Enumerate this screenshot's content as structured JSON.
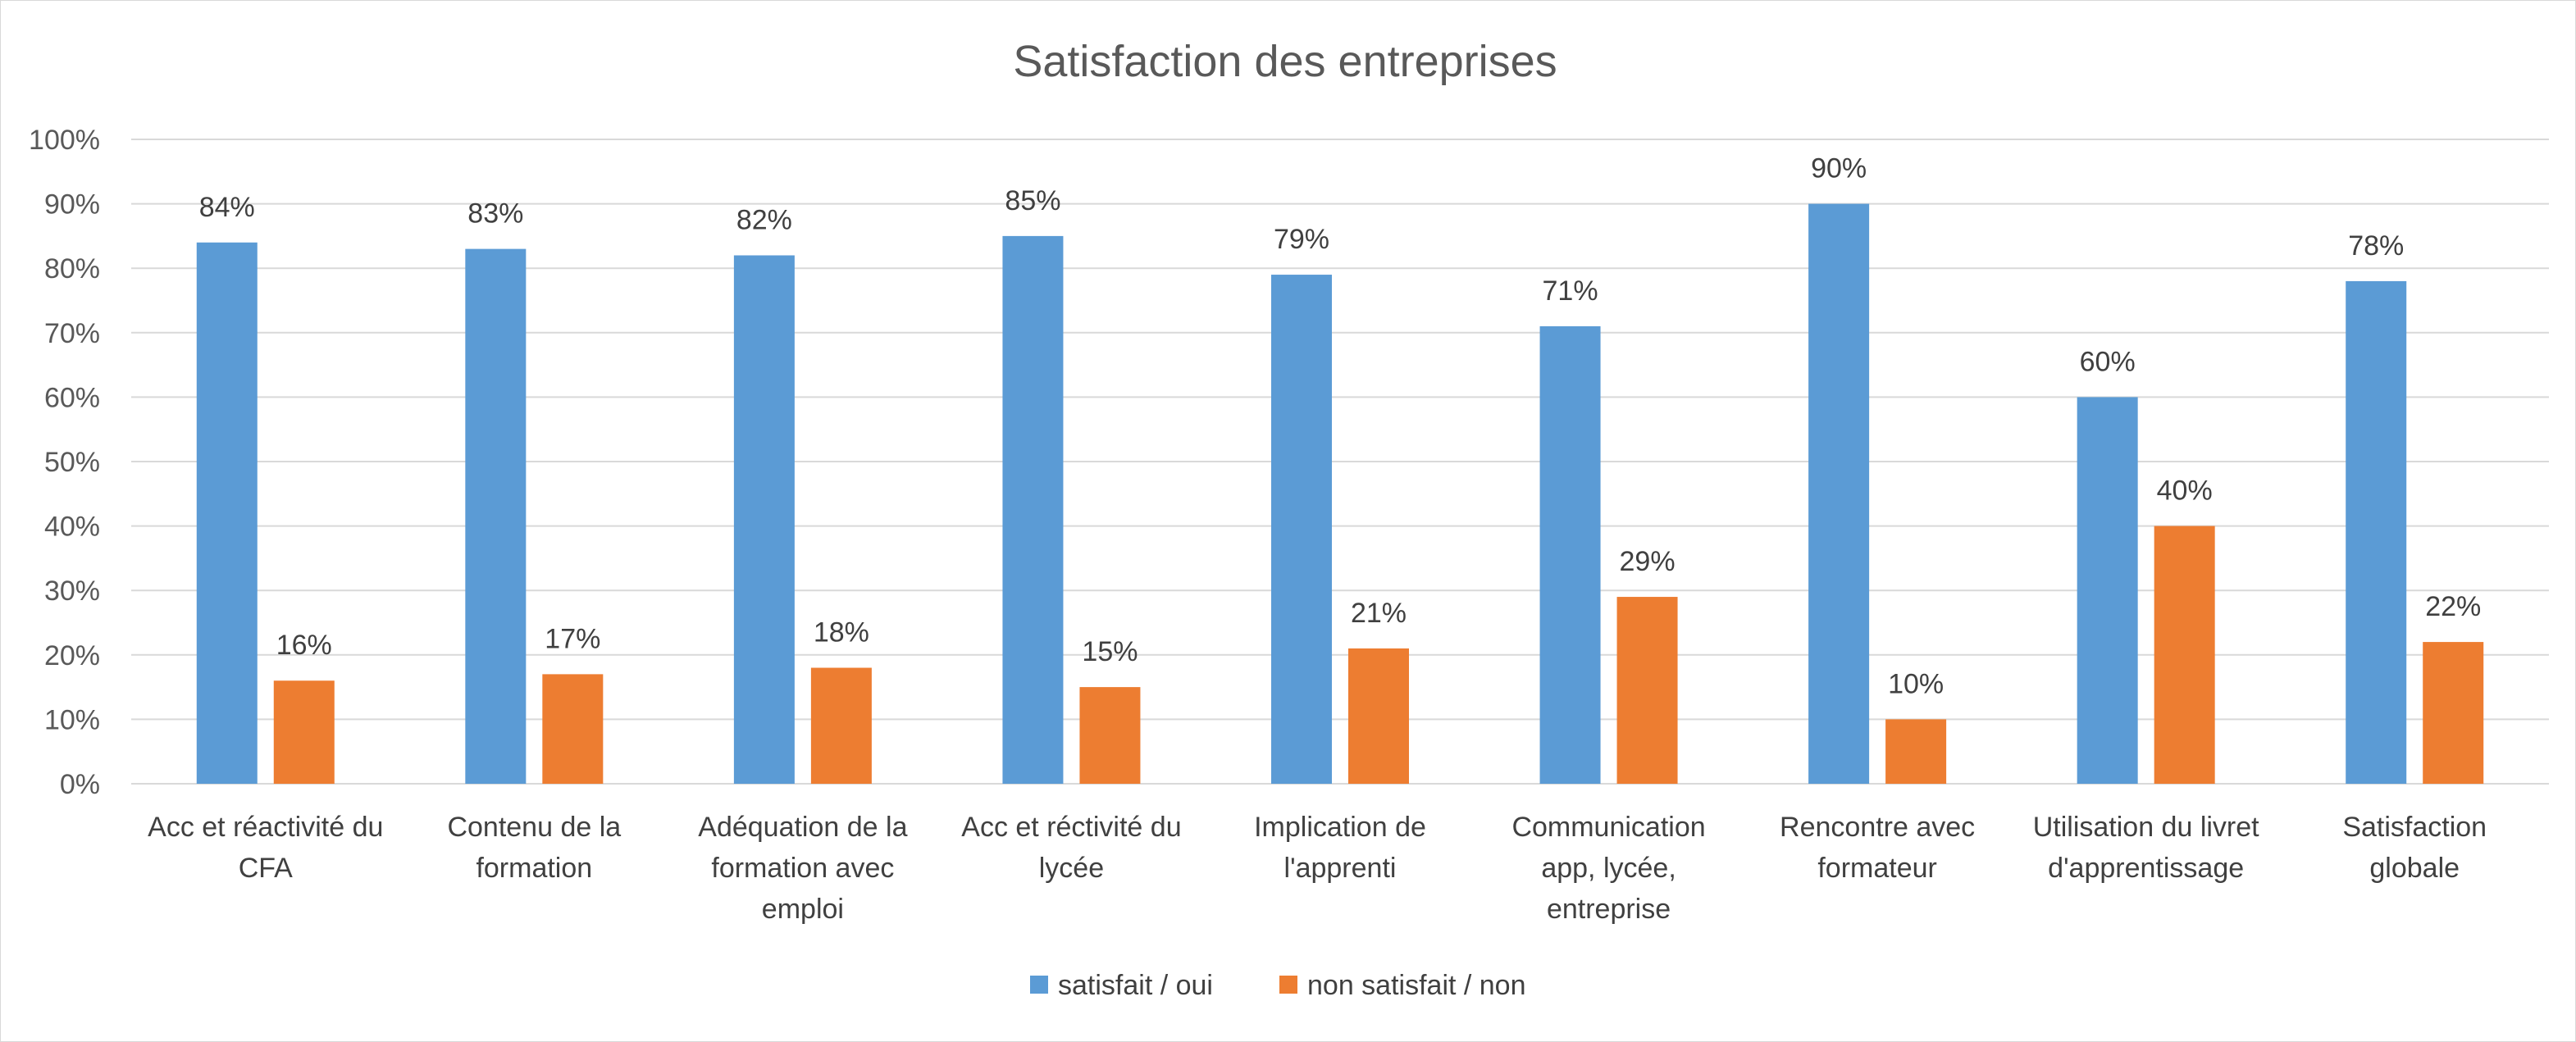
{
  "chart_data": {
    "type": "bar",
    "title": "Satisfaction des entreprises",
    "xlabel": "",
    "ylabel": "",
    "ylim": [
      0,
      100
    ],
    "yticks": [
      "0%",
      "10%",
      "20%",
      "30%",
      "40%",
      "50%",
      "60%",
      "70%",
      "80%",
      "90%",
      "100%"
    ],
    "grid": true,
    "legend_position": "bottom",
    "categories": [
      [
        "Acc et réactivité du",
        "CFA"
      ],
      [
        "Contenu de la",
        "formation"
      ],
      [
        "Adéquation de la",
        "formation avec",
        "emploi"
      ],
      [
        "Acc et réctivité du",
        "lycée"
      ],
      [
        "Implication de",
        "l'apprenti"
      ],
      [
        "Communication",
        "app, lycée,",
        "entreprise"
      ],
      [
        "Rencontre avec",
        "formateur"
      ],
      [
        "Utilisation du livret",
        "d'apprentissage"
      ],
      [
        "Satisfaction",
        "globale"
      ]
    ],
    "series": [
      {
        "name": "satisfait / oui",
        "color": "#5b9bd5",
        "values": [
          84,
          83,
          82,
          85,
          79,
          71,
          90,
          60,
          78
        ],
        "labels": [
          "84%",
          "83%",
          "82%",
          "85%",
          "79%",
          "71%",
          "90%",
          "60%",
          "78%"
        ]
      },
      {
        "name": "non satisfait / non",
        "color": "#ed7d31",
        "values": [
          16,
          17,
          18,
          15,
          21,
          29,
          10,
          40,
          22
        ],
        "labels": [
          "16%",
          "17%",
          "18%",
          "15%",
          "21%",
          "29%",
          "10%",
          "40%",
          "22%"
        ]
      }
    ]
  }
}
